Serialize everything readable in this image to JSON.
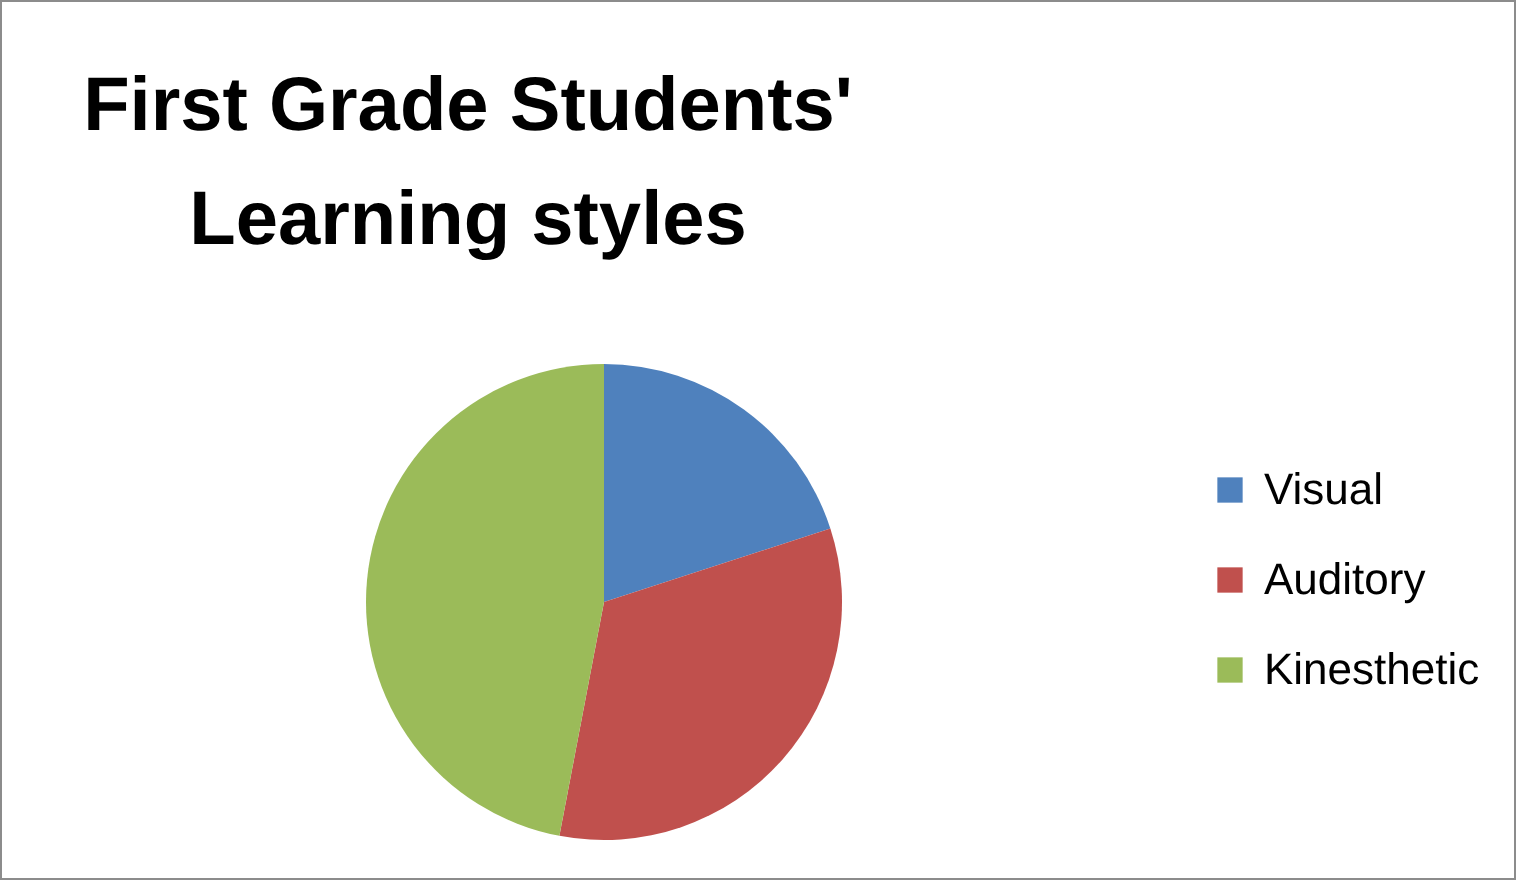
{
  "chart_data": {
    "type": "pie",
    "title": "First Grade Students' Learning styles",
    "categories": [
      "Visual",
      "Auditory",
      "Kinesthetic"
    ],
    "values": [
      20,
      33,
      47
    ],
    "colors": [
      "#4f81bd",
      "#c0504d",
      "#9bbb59"
    ],
    "legend": "right"
  }
}
